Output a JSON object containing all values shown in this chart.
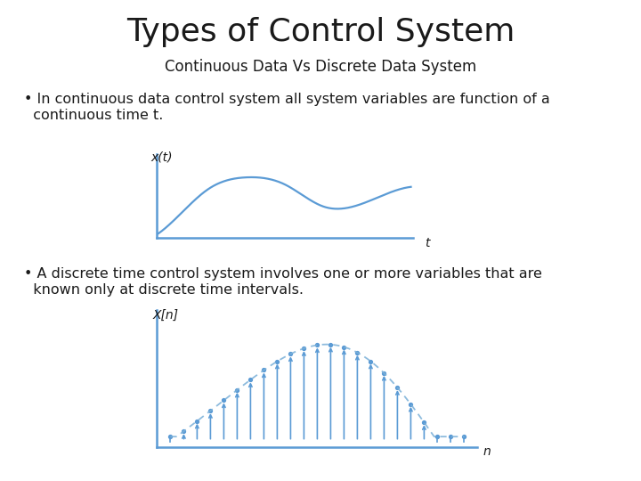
{
  "title": "Types of Control System",
  "subtitle": "Continuous Data Vs Discrete Data System",
  "bullet1_line1": "• In continuous data control system all system variables are function of a",
  "bullet1_line2": "  continuous time t.",
  "bullet2_line1": "• A discrete time control system involves one or more variables that are",
  "bullet2_line2": "  known only at discrete time intervals.",
  "title_fontsize": 26,
  "subtitle_fontsize": 12,
  "body_fontsize": 11.5,
  "axis_label_fontsize": 10,
  "bg_color": "#ffffff",
  "text_color": "#1a1a1a",
  "curve_color": "#5b9bd5",
  "axis_color": "#5b9bd5",
  "stem_color": "#5b9bd5",
  "envelope_color": "#7ab0d8"
}
